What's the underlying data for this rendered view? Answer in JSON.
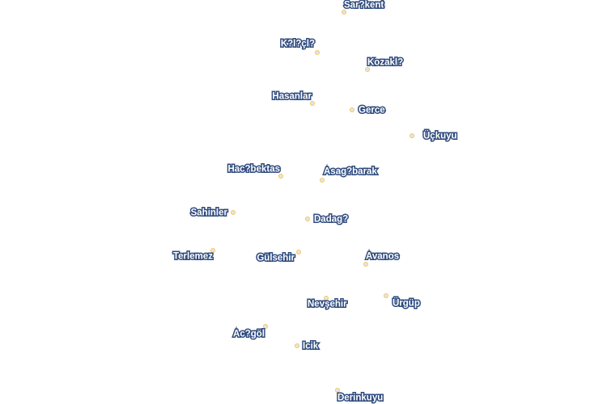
{
  "map": {
    "colors": {
      "label_fill": "#ffffff",
      "label_halo": "#2f4b7e",
      "marker_stroke": "#f2c75c",
      "marker_fill": "#e4e4ea"
    },
    "places": [
      {
        "name": "Sar?kent"
      },
      {
        "name": "K?l?çl?"
      },
      {
        "name": "Kozakl?"
      },
      {
        "name": "Hasanlar"
      },
      {
        "name": "Gerce"
      },
      {
        "name": "Üçkuyu"
      },
      {
        "name": "Hac?bektas"
      },
      {
        "name": "Asag?barak"
      },
      {
        "name": "Sahinler"
      },
      {
        "name": "Dadag?"
      },
      {
        "name": "Terlemez"
      },
      {
        "name": "Gülsehir"
      },
      {
        "name": "Avanos"
      },
      {
        "name": "Nevşehir"
      },
      {
        "name": "Ürgüp"
      },
      {
        "name": "Ac?göl"
      },
      {
        "name": "Icik"
      },
      {
        "name": "Derinkuyu"
      }
    ]
  }
}
